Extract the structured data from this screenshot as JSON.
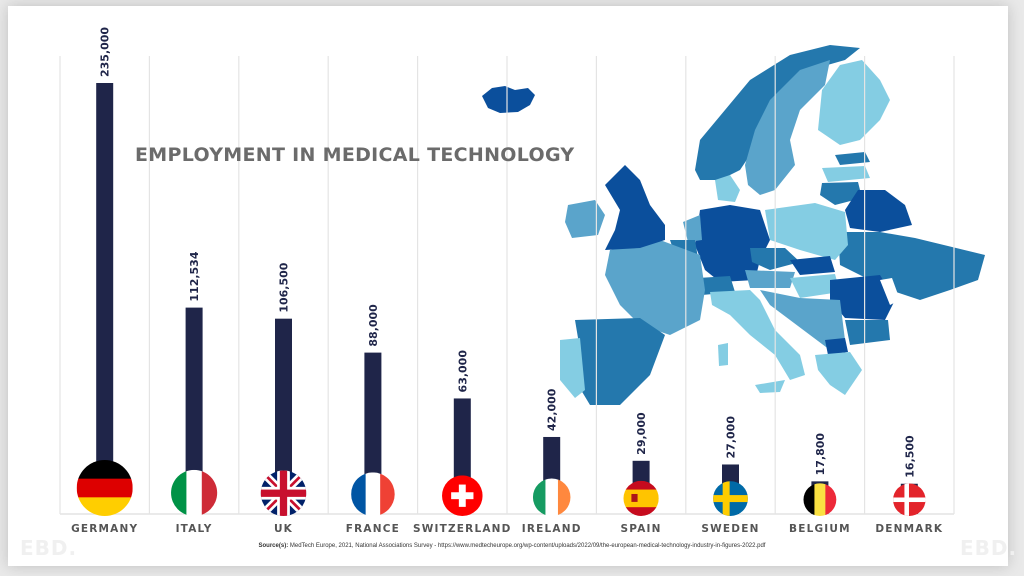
{
  "chart_data": {
    "type": "bar",
    "title": "EMPLOYMENT IN MEDICAL TECHNOLOGY",
    "xlabel": "",
    "ylabel": "",
    "categories": [
      "GERMANY",
      "ITALY",
      "UK",
      "FRANCE",
      "SWITZERLAND",
      "IRELAND",
      "SPAIN",
      "SWEDEN",
      "BELGIUM",
      "DENMARK"
    ],
    "values": [
      235000,
      112534,
      106500,
      88000,
      63000,
      42000,
      29000,
      27000,
      17800,
      16500
    ],
    "value_labels": [
      "235,000",
      "112,534",
      "106,500",
      "88,000",
      "63,000",
      "42,000",
      "29,000",
      "27,000",
      "17,800",
      "16,500"
    ],
    "ylim": [
      0,
      235000
    ],
    "grid": "vertical",
    "bar_color": "#1f2549",
    "flags": [
      "germany-flag-icon",
      "italy-flag-icon",
      "uk-flag-icon",
      "france-flag-icon",
      "switzerland-flag-icon",
      "ireland-flag-icon",
      "spain-flag-icon",
      "sweden-flag-icon",
      "belgium-flag-icon",
      "denmark-flag-icon"
    ]
  },
  "source": {
    "label": "Source(s):",
    "text": " MedTech Europe, 2021, National Associations Survey - https://www.medtecheurope.org/wp-content/uploads/2022/09/the-european-medical-technology-industry-in-figures-2022.pdf"
  },
  "watermark": "EBD.",
  "map": {
    "description": "Choropleth map of Europe",
    "colors": [
      "#0b4f9c",
      "#2478ad",
      "#5aa4cb",
      "#84cde3"
    ]
  }
}
